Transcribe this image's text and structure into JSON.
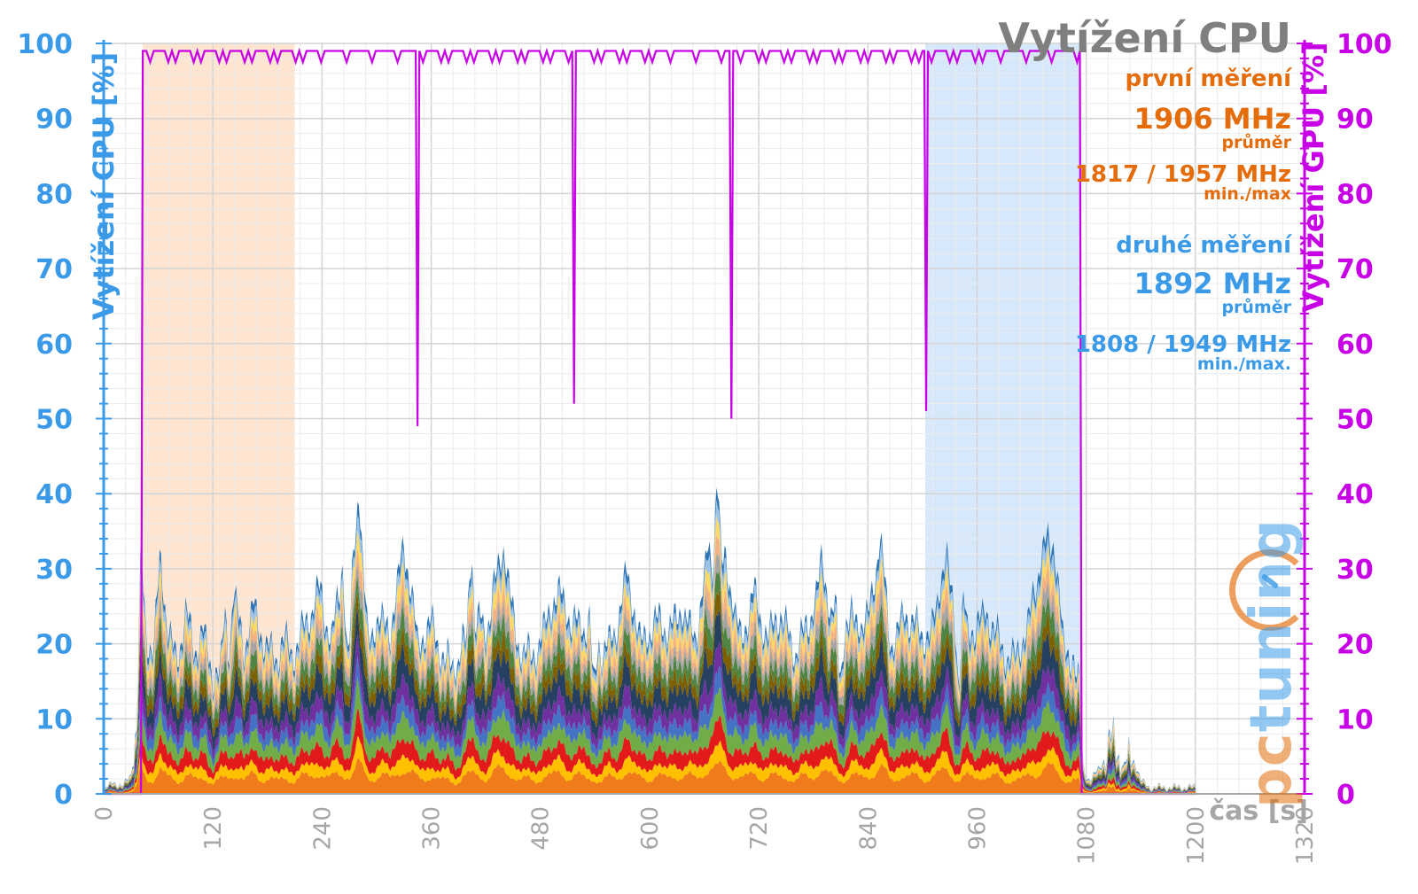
{
  "chart_data": {
    "type": "area",
    "title": "Vytížení CPU",
    "ylabel": "Vytížení CPU [%]",
    "y2label": "Vytížení GPU [%]",
    "xlabel": "čas [s]",
    "xlim": [
      0,
      1320
    ],
    "ylim": [
      0,
      100
    ],
    "y2lim": [
      0,
      100
    ],
    "xticks": [
      0,
      120,
      240,
      360,
      480,
      600,
      720,
      840,
      960,
      1080,
      1200,
      1320
    ],
    "yticks": [
      0,
      10,
      20,
      30,
      40,
      50,
      60,
      70,
      80,
      90,
      100
    ],
    "grid": true,
    "shaded_regions": [
      {
        "label": "první měření",
        "x": [
          43,
          210
        ],
        "color": "#fde5d1"
      },
      {
        "label": "druhé měření",
        "x": [
          903,
          1074
        ],
        "color": "#d7e8fb"
      }
    ],
    "cpu_stacked": {
      "colors": [
        "#ef7b1a",
        "#ffc000",
        "#e31a1c",
        "#70ad47",
        "#4472c4",
        "#7030a0",
        "#254061",
        "#7f6000",
        "#4e8542",
        "#a5a5a5",
        "#f4b183",
        "#ffd966",
        "#9dc3e6",
        "#2e75b6"
      ],
      "total_samples": [
        {
          "x": 0,
          "y": 0
        },
        {
          "x": 10,
          "y": 2
        },
        {
          "x": 20,
          "y": 1
        },
        {
          "x": 30,
          "y": 3
        },
        {
          "x": 36,
          "y": 9
        },
        {
          "x": 41,
          "y": 35
        },
        {
          "x": 47,
          "y": 24
        },
        {
          "x": 55,
          "y": 21
        },
        {
          "x": 62,
          "y": 36
        },
        {
          "x": 70,
          "y": 24
        },
        {
          "x": 80,
          "y": 20
        },
        {
          "x": 90,
          "y": 27
        },
        {
          "x": 100,
          "y": 21
        },
        {
          "x": 110,
          "y": 24
        },
        {
          "x": 120,
          "y": 18
        },
        {
          "x": 130,
          "y": 19
        },
        {
          "x": 142,
          "y": 30
        },
        {
          "x": 155,
          "y": 21
        },
        {
          "x": 165,
          "y": 28
        },
        {
          "x": 178,
          "y": 22
        },
        {
          "x": 190,
          "y": 20
        },
        {
          "x": 200,
          "y": 23
        },
        {
          "x": 210,
          "y": 21
        },
        {
          "x": 225,
          "y": 26
        },
        {
          "x": 238,
          "y": 31
        },
        {
          "x": 250,
          "y": 22
        },
        {
          "x": 262,
          "y": 32
        },
        {
          "x": 272,
          "y": 24
        },
        {
          "x": 280,
          "y": 46
        },
        {
          "x": 290,
          "y": 23
        },
        {
          "x": 300,
          "y": 26
        },
        {
          "x": 315,
          "y": 24
        },
        {
          "x": 330,
          "y": 38
        },
        {
          "x": 345,
          "y": 22
        },
        {
          "x": 360,
          "y": 26
        },
        {
          "x": 375,
          "y": 19
        },
        {
          "x": 390,
          "y": 20
        },
        {
          "x": 405,
          "y": 30
        },
        {
          "x": 420,
          "y": 24
        },
        {
          "x": 440,
          "y": 37
        },
        {
          "x": 455,
          "y": 22
        },
        {
          "x": 470,
          "y": 20
        },
        {
          "x": 485,
          "y": 25
        },
        {
          "x": 500,
          "y": 30
        },
        {
          "x": 515,
          "y": 26
        },
        {
          "x": 530,
          "y": 24
        },
        {
          "x": 545,
          "y": 20
        },
        {
          "x": 560,
          "y": 23
        },
        {
          "x": 575,
          "y": 33
        },
        {
          "x": 590,
          "y": 22
        },
        {
          "x": 605,
          "y": 26
        },
        {
          "x": 620,
          "y": 24
        },
        {
          "x": 636,
          "y": 28
        },
        {
          "x": 650,
          "y": 22
        },
        {
          "x": 668,
          "y": 40
        },
        {
          "x": 685,
          "y": 35
        },
        {
          "x": 700,
          "y": 22
        },
        {
          "x": 715,
          "y": 30
        },
        {
          "x": 730,
          "y": 23
        },
        {
          "x": 745,
          "y": 27
        },
        {
          "x": 760,
          "y": 21
        },
        {
          "x": 775,
          "y": 25
        },
        {
          "x": 790,
          "y": 35
        },
        {
          "x": 805,
          "y": 22
        },
        {
          "x": 820,
          "y": 25
        },
        {
          "x": 840,
          "y": 26
        },
        {
          "x": 853,
          "y": 38
        },
        {
          "x": 865,
          "y": 22
        },
        {
          "x": 880,
          "y": 27
        },
        {
          "x": 895,
          "y": 24
        },
        {
          "x": 910,
          "y": 24
        },
        {
          "x": 925,
          "y": 35
        },
        {
          "x": 940,
          "y": 22
        },
        {
          "x": 955,
          "y": 25
        },
        {
          "x": 970,
          "y": 27
        },
        {
          "x": 985,
          "y": 22
        },
        {
          "x": 1000,
          "y": 20
        },
        {
          "x": 1015,
          "y": 24
        },
        {
          "x": 1030,
          "y": 36
        },
        {
          "x": 1045,
          "y": 37
        },
        {
          "x": 1055,
          "y": 22
        },
        {
          "x": 1065,
          "y": 21
        },
        {
          "x": 1072,
          "y": 16
        },
        {
          "x": 1076,
          "y": 4
        },
        {
          "x": 1085,
          "y": 2
        },
        {
          "x": 1100,
          "y": 5
        },
        {
          "x": 1110,
          "y": 9
        },
        {
          "x": 1120,
          "y": 4
        },
        {
          "x": 1130,
          "y": 6
        },
        {
          "x": 1140,
          "y": 2
        },
        {
          "x": 1150,
          "y": 1
        },
        {
          "x": 1170,
          "y": 1
        },
        {
          "x": 1185,
          "y": 1
        },
        {
          "x": 1200,
          "y": 1
        }
      ]
    },
    "gpu_line": {
      "color": "#c700e6",
      "points": [
        {
          "x": 0,
          "y": 0
        },
        {
          "x": 41,
          "y": 0
        },
        {
          "x": 43,
          "y": 99
        },
        {
          "x": 343,
          "y": 99
        },
        {
          "x": 345,
          "y": 49
        },
        {
          "x": 347,
          "y": 99
        },
        {
          "x": 515,
          "y": 99
        },
        {
          "x": 517,
          "y": 52
        },
        {
          "x": 519,
          "y": 99
        },
        {
          "x": 688,
          "y": 99
        },
        {
          "x": 690,
          "y": 50
        },
        {
          "x": 692,
          "y": 99
        },
        {
          "x": 902,
          "y": 99
        },
        {
          "x": 904,
          "y": 51
        },
        {
          "x": 906,
          "y": 99
        },
        {
          "x": 1073,
          "y": 99
        },
        {
          "x": 1075,
          "y": 0
        },
        {
          "x": 1200,
          "y": 0
        }
      ]
    }
  },
  "annotations": {
    "title": "Vytížení CPU",
    "first_label": "první měření",
    "first_avg": "1906 MHz",
    "first_avg_sub": "průměr",
    "first_minmax": "1817 / 1957 MHz",
    "first_minmax_sub": "min./max",
    "second_label": "druhé měření",
    "second_avg": "1892 MHz",
    "second_avg_sub": "průměr",
    "second_minmax": "1808 / 1949 MHz",
    "second_minmax_sub": "min./max."
  },
  "logo": {
    "text_pc": "pc",
    "text_tuning": "tuning"
  },
  "colors": {
    "orange": "#e46c0a",
    "blue": "#3a9ae8",
    "magenta": "#c700e6",
    "gray": "#7f7f7f"
  }
}
